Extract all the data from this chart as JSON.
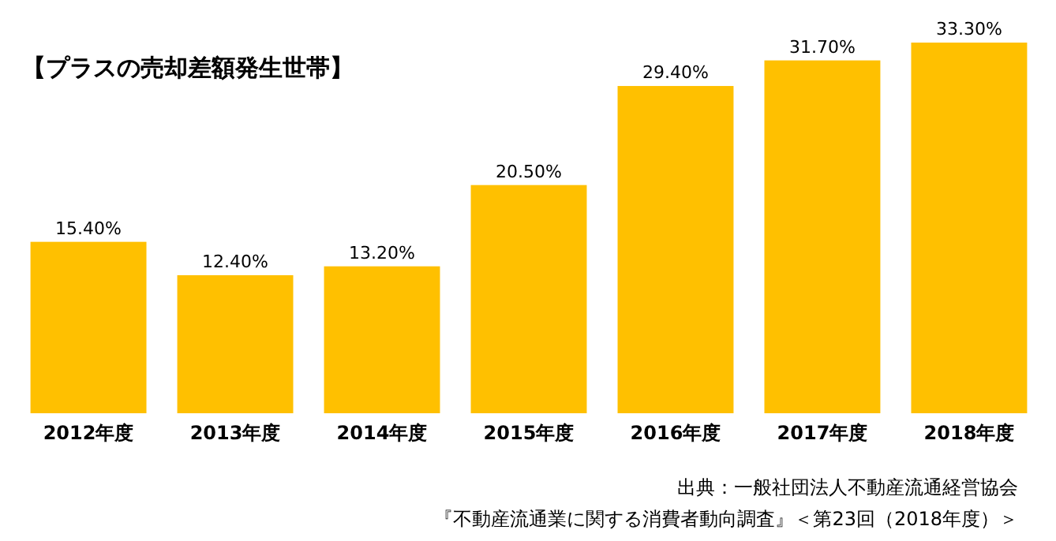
{
  "chart_data": {
    "type": "bar",
    "title": "【プラスの売却差額発生世帯】",
    "categories": [
      "2012年度",
      "2013年度",
      "2014年度",
      "2015年度",
      "2016年度",
      "2017年度",
      "2018年度"
    ],
    "values": [
      15.4,
      12.4,
      13.2,
      20.5,
      29.4,
      31.7,
      33.3
    ],
    "value_labels": [
      "15.40%",
      "12.40%",
      "13.20%",
      "20.50%",
      "29.40%",
      "31.70%",
      "33.30%"
    ],
    "color": "#ffc000",
    "tick_labels": "x",
    "annotations": [
      "出典：一般社団法人不動産流通経営協会",
      "『不動産流通業に関する消費者動向調査』＜第23回（2018年度）＞"
    ]
  }
}
